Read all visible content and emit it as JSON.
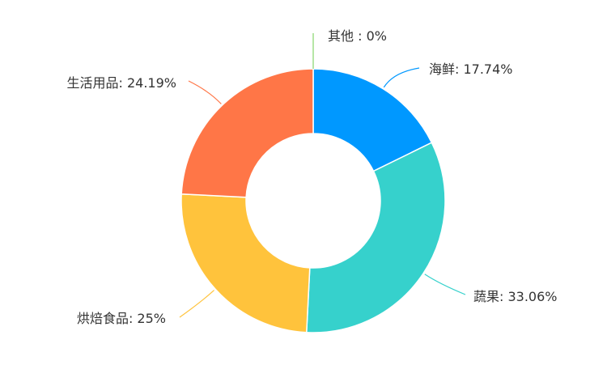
{
  "chart_data": {
    "type": "pie",
    "variant": "donut",
    "legend": "none",
    "slices": [
      {
        "name": "海鲜",
        "value": 17.74,
        "label": "海鲜: 17.74%",
        "color": "#0098FF"
      },
      {
        "name": "蔬果",
        "value": 33.06,
        "label": "蔬果: 33.06%",
        "color": "#36D1CC"
      },
      {
        "name": "烘焙食品",
        "value": 25,
        "label": "烘焙食品: 25%",
        "color": "#FFC33C"
      },
      {
        "name": "生活用品",
        "value": 24.19,
        "label": "生活用品: 24.19%",
        "color": "#FF7647"
      },
      {
        "name": "其他",
        "value": 0,
        "label": "其他 : 0%",
        "color": "#86D46B"
      }
    ]
  }
}
